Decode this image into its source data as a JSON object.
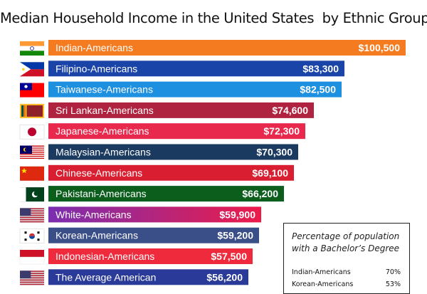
{
  "chart_data": {
    "type": "bar",
    "orientation": "horizontal",
    "title": "Median Household Income in the United States  by Ethnic Group",
    "categories": [
      "Indian-Americans",
      "Filipino-Americans",
      "Taiwanese-Americans",
      "Sri Lankan-Americans",
      "Japanese-Americans",
      "Malaysian-Americans",
      "Chinese-Americans",
      "Pakistani-Americans",
      "White-Americans",
      "Korean-Americans",
      "Indonesian-Americans",
      "The Average American"
    ],
    "values": [
      100500,
      83300,
      82500,
      74600,
      72300,
      70300,
      69100,
      66200,
      59900,
      59200,
      57500,
      56200
    ],
    "value_labels": [
      "$100,500",
      "$83,300",
      "$82,500",
      "$74,600",
      "$72,300",
      "$70,300",
      "$69,100",
      "$66,200",
      "$59,900",
      "$59,200",
      "$57,500",
      "$56,200"
    ],
    "flags": [
      "india-flag-icon",
      "philippines-flag-icon",
      "taiwan-flag-icon",
      "sri-lanka-flag-icon",
      "japan-flag-icon",
      "malaysia-flag-icon",
      "china-flag-icon",
      "pakistan-flag-icon",
      "usa-flag-icon",
      "south-korea-flag-icon",
      "indonesia-flag-icon",
      "usa-flag-icon"
    ],
    "colors": [
      "#f47b20",
      "#1a44a8",
      "#1e90e0",
      "#b02340",
      "#e8284c",
      "#1a3a60",
      "#d81e30",
      "#0b5e1c",
      "#7a2eb0",
      "#3a4e88",
      "#ee2a3c",
      "#2a3a98"
    ],
    "gradient_end": {
      "8": "#ec1c4a"
    },
    "xlim": [
      0,
      100500
    ]
  },
  "inset": {
    "title": "Percentage of population with a Bachelor’s Degree",
    "rows": [
      {
        "label": "Indian-Americans",
        "value": "70%"
      },
      {
        "label": "Korean-Americans",
        "value": "53%"
      }
    ]
  }
}
